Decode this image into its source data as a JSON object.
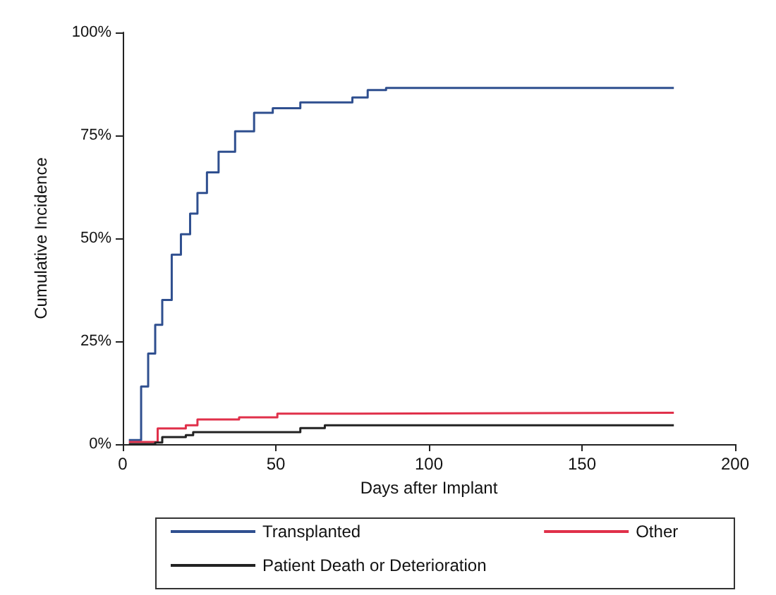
{
  "chart_data": {
    "type": "step",
    "xlabel": "Days after Implant",
    "ylabel": "Cumulative Incidence",
    "xlim": [
      0,
      200
    ],
    "xticks": [
      0,
      50,
      100,
      150,
      200
    ],
    "ylim": [
      0,
      100
    ],
    "yticks": [
      {
        "value": 0,
        "label": "0%"
      },
      {
        "value": 25,
        "label": "25%"
      },
      {
        "value": 50,
        "label": "50%"
      },
      {
        "value": 75,
        "label": "75%"
      },
      {
        "value": 100,
        "label": "100%"
      }
    ],
    "grid": false,
    "legend": "bottom",
    "marker": "none",
    "line_style": "solid",
    "series": [
      {
        "name": "Transplanted",
        "color": "#2f4f8f",
        "x": [
          2,
          6,
          8.3,
          10.6,
          12.9,
          16,
          19,
          22,
          24.4,
          27.5,
          31.3,
          36.7,
          42.9,
          49,
          58,
          75,
          80,
          86,
          180
        ],
        "values": [
          1,
          14,
          22,
          29,
          35,
          46,
          51,
          56,
          61,
          66,
          71,
          76,
          80.5,
          81.6,
          83,
          84.2,
          86,
          86.5,
          86.5
        ]
      },
      {
        "name": "Other",
        "color": "#e0304a",
        "x": [
          2,
          11.4,
          20.6,
          24.4,
          38,
          50.5,
          67,
          180
        ],
        "values": [
          0.5,
          3.8,
          4.6,
          6,
          6.5,
          7.4,
          7.6,
          7.6
        ]
      },
      {
        "name": "Patient Death or Deterioration",
        "color": "#222222",
        "x": [
          2,
          10.6,
          12.9,
          20.6,
          23,
          58,
          66,
          180
        ],
        "values": [
          0,
          0.4,
          1.7,
          2.2,
          2.9,
          3.9,
          4.6,
          4.6
        ]
      }
    ]
  }
}
